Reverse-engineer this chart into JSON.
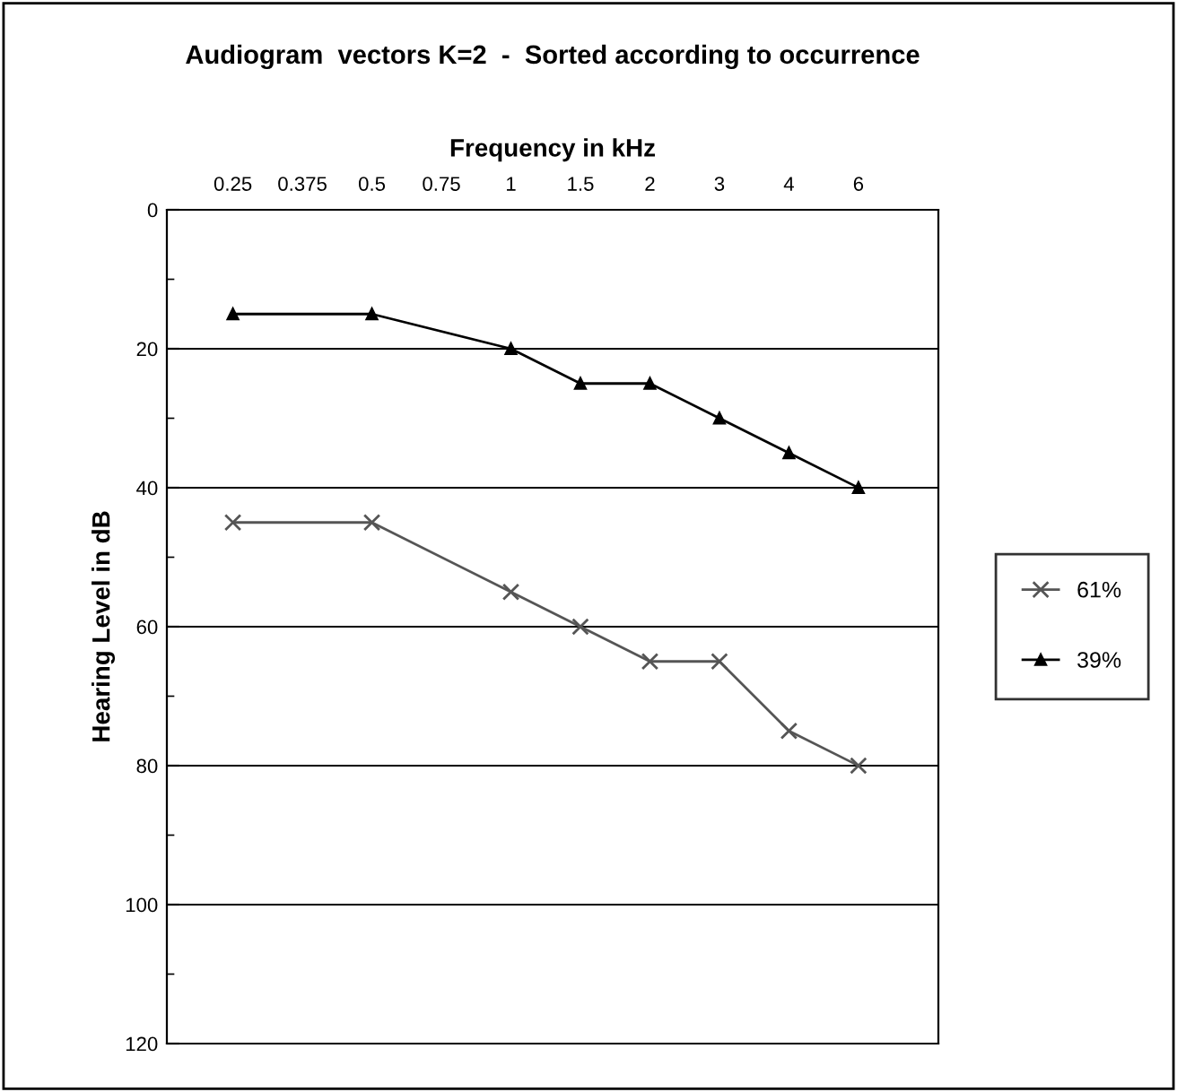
{
  "chart_data": {
    "type": "line",
    "title": "Audiogram  vectors K=2  -  Sorted according to occurrence",
    "xlabel": "Frequency in kHz",
    "ylabel": "Hearing Level in dB",
    "categories": [
      "0.25",
      "0.375",
      "0.5",
      "0.75",
      "1",
      "1.5",
      "2",
      "3",
      "4",
      "6"
    ],
    "series": [
      {
        "name": "61%",
        "color": "#555555",
        "marker": "cross",
        "values": [
          45,
          null,
          45,
          null,
          55,
          60,
          65,
          65,
          75,
          80
        ]
      },
      {
        "name": "39%",
        "color": "#000000",
        "marker": "triangle",
        "values": [
          15,
          null,
          15,
          null,
          20,
          25,
          25,
          30,
          35,
          40
        ]
      }
    ],
    "ylim": [
      120,
      0
    ],
    "yticks": [
      0,
      {
        "value": 10,
        "label": null
      },
      20,
      {
        "value": 30,
        "label": null
      },
      40,
      {
        "value": 50,
        "label": null
      },
      60,
      {
        "value": 70,
        "label": null
      },
      80,
      {
        "value": 90,
        "label": null
      },
      100,
      {
        "value": 110,
        "label": null
      },
      120
    ],
    "grid": "y",
    "legend": "right",
    "line_style": "solid"
  }
}
